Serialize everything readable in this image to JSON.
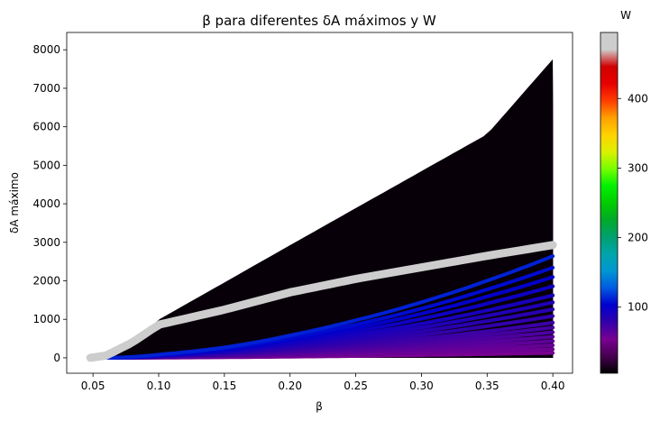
{
  "chart_data": {
    "type": "scatter",
    "title": "β para diferentes δA máximos  y W",
    "xlabel": "β",
    "ylabel": "δA máximo",
    "xlim": [
      0.03,
      0.415
    ],
    "ylim": [
      -400,
      8450
    ],
    "x_ticks": [
      0.05,
      0.1,
      0.15,
      0.2,
      0.25,
      0.3,
      0.35,
      0.4
    ],
    "x_tick_labels": [
      "0.05",
      "0.10",
      "0.15",
      "0.20",
      "0.25",
      "0.30",
      "0.35",
      "0.40"
    ],
    "y_ticks": [
      0,
      1000,
      2000,
      3000,
      4000,
      5000,
      6000,
      7000,
      8000
    ],
    "y_tick_labels": [
      "0",
      "1000",
      "2000",
      "3000",
      "4000",
      "5000",
      "6000",
      "7000",
      "8000"
    ],
    "grid": false,
    "beta_range": [
      0.048,
      0.4
    ],
    "max_deltaA_by_beta": {
      "x": [
        0.048,
        0.06,
        0.08,
        0.1,
        0.15,
        0.2,
        0.25,
        0.3,
        0.35,
        0.4
      ],
      "y": [
        0,
        60,
        400,
        1000,
        2000,
        3000,
        4000,
        5000,
        6000,
        8050
      ]
    },
    "upper_envelope_W_max": {
      "W": 495,
      "x": [
        0.048,
        0.06,
        0.08,
        0.1,
        0.15,
        0.2,
        0.25,
        0.3,
        0.35,
        0.4
      ],
      "y": [
        0,
        60,
        400,
        860,
        1250,
        1700,
        2050,
        2350,
        2650,
        2930
      ]
    },
    "separated_curves_W": [
      5,
      8,
      11,
      14,
      17,
      20,
      23,
      26,
      30,
      34,
      38,
      42,
      47,
      52,
      57,
      63
    ],
    "colorbar": {
      "label": "W",
      "colormap": "nipy_spectral",
      "range": [
        5,
        495
      ],
      "ticks": [
        100,
        200,
        300,
        400
      ],
      "tick_labels": [
        "100",
        "200",
        "300",
        "400"
      ]
    }
  }
}
